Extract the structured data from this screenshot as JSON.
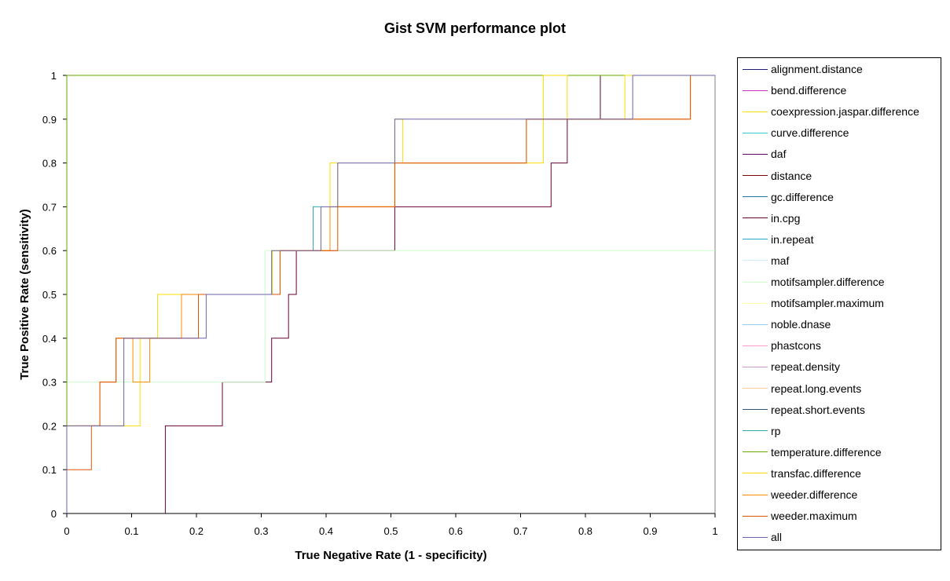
{
  "chart_data": {
    "type": "line",
    "title": "Gist SVM performance plot",
    "xlabel": "True Negative Rate (1 - specificity)",
    "ylabel": "True Positive Rate (sensitivity)",
    "xlim": [
      0,
      1
    ],
    "ylim": [
      0,
      1
    ],
    "x_ticks": [
      "0",
      "0.1",
      "0.2",
      "0.3",
      "0.4",
      "0.5",
      "0.6",
      "0.7",
      "0.8",
      "0.9",
      "1"
    ],
    "y_ticks": [
      "0",
      "0.1",
      "0.2",
      "0.3",
      "0.4",
      "0.5",
      "0.6",
      "0.7",
      "0.8",
      "0.9",
      "1"
    ],
    "grid": "none",
    "legend_position": "right",
    "series": [
      {
        "name": "alignment.distance",
        "color": "#1f1f7a",
        "x": [
          0,
          0,
          1
        ],
        "y": [
          0,
          1,
          1
        ]
      },
      {
        "name": "bend.difference",
        "color": "#cc33cc",
        "x": [
          0,
          0,
          1
        ],
        "y": [
          0,
          1,
          1
        ]
      },
      {
        "name": "coexpression.jaspar.difference",
        "color": "#f5e000",
        "x": [
          0,
          0,
          1
        ],
        "y": [
          0,
          1,
          1
        ]
      },
      {
        "name": "curve.difference",
        "color": "#33cccc",
        "x": [
          0,
          0,
          1
        ],
        "y": [
          0,
          1,
          1
        ]
      },
      {
        "name": "daf",
        "color": "#660066",
        "x": [
          0,
          0,
          1
        ],
        "y": [
          0,
          1,
          1
        ]
      },
      {
        "name": "distance",
        "color": "#7a0a0a",
        "x": [
          0,
          0,
          1
        ],
        "y": [
          0,
          1,
          1
        ]
      },
      {
        "name": "gc.difference",
        "color": "#1a7aaa",
        "x": [
          0,
          0,
          1
        ],
        "y": [
          0,
          1,
          1
        ]
      },
      {
        "name": "in.cpg",
        "color": "#660033",
        "x": [
          0.152,
          0.152,
          0.24,
          0.24,
          0.316,
          0.316,
          0.342,
          0.342,
          0.354,
          0.354,
          0.506,
          0.506,
          0.747,
          0.747,
          0.772,
          0.772,
          0.823,
          0.823,
          0.873,
          0.873,
          1
        ],
        "y": [
          0,
          0.2,
          0.2,
          0.3,
          0.3,
          0.4,
          0.4,
          0.5,
          0.5,
          0.6,
          0.6,
          0.7,
          0.7,
          0.8,
          0.8,
          0.9,
          0.9,
          1,
          1,
          1,
          1
        ]
      },
      {
        "name": "in.repeat",
        "color": "#22aacc",
        "x": [
          0,
          0,
          1
        ],
        "y": [
          0,
          1,
          1
        ]
      },
      {
        "name": "maf",
        "color": "#cceeff",
        "x": [
          0,
          0,
          1
        ],
        "y": [
          0,
          1,
          1
        ]
      },
      {
        "name": "motifsampler.difference",
        "color": "#ccffcc",
        "x": [
          0,
          0,
          0.306,
          0.306,
          1
        ],
        "y": [
          0,
          0.3,
          0.3,
          0.6,
          0.6
        ]
      },
      {
        "name": "motifsampler.maximum",
        "color": "#ffff99",
        "x": [
          0,
          0,
          1
        ],
        "y": [
          0,
          1,
          1
        ]
      },
      {
        "name": "noble.dnase",
        "color": "#99ccee",
        "x": [
          0,
          0,
          1
        ],
        "y": [
          0,
          1,
          1
        ]
      },
      {
        "name": "phastcons",
        "color": "#ff99cc",
        "x": [
          0,
          0,
          1
        ],
        "y": [
          0,
          1,
          1
        ]
      },
      {
        "name": "repeat.density",
        "color": "#cc99cc",
        "x": [
          0,
          0,
          1
        ],
        "y": [
          0,
          1,
          1
        ]
      },
      {
        "name": "repeat.long.events",
        "color": "#ffcc99",
        "x": [
          0,
          0,
          1
        ],
        "y": [
          0,
          1,
          1
        ]
      },
      {
        "name": "repeat.short.events",
        "color": "#335577",
        "x": [
          0,
          0,
          1
        ],
        "y": [
          0,
          1,
          1
        ]
      },
      {
        "name": "rp",
        "color": "#33aaaa",
        "x": [
          0.38,
          0.38,
          0.392,
          0.392
        ],
        "y": [
          0.6,
          0.7,
          0.7,
          0.7
        ]
      },
      {
        "name": "temperature.difference",
        "color": "#66aa00",
        "x": [
          0,
          0,
          1
        ],
        "y": [
          0,
          1,
          1
        ]
      },
      {
        "name": "transfac.difference",
        "color": "#ffdd00",
        "x": [
          0,
          0,
          0.102,
          0.102,
          0.113,
          0.113,
          0.14,
          0.14,
          0.177,
          0.177,
          0.317,
          0.317,
          0.342,
          0.342,
          0.406,
          0.406,
          0.418,
          0.418,
          0.481,
          0.481,
          0.506,
          0.506,
          0.518,
          0.518,
          0.714,
          0.714,
          0.735,
          0.735,
          0.772,
          0.772,
          0.861,
          0.861,
          1
        ],
        "y": [
          0,
          0.2,
          0.2,
          0.2,
          0.2,
          0.4,
          0.4,
          0.5,
          0.5,
          0.5,
          0.5,
          0.6,
          0.6,
          0.6,
          0.6,
          0.8,
          0.8,
          0.7,
          0.7,
          0.7,
          0.7,
          0.9,
          0.9,
          0.8,
          0.8,
          0.8,
          0.8,
          1,
          1,
          0.9,
          0.9,
          1,
          1
        ]
      },
      {
        "name": "weeder.difference",
        "color": "#ff8800",
        "x": [
          0,
          0,
          0.051,
          0.051,
          0.076,
          0.076,
          0.102,
          0.102,
          0.128,
          0.128,
          0.177,
          0.177,
          0.203,
          0.203,
          0.329,
          0.329,
          0.406,
          0.406,
          0.418,
          0.418,
          0.506,
          0.506,
          0.518,
          0.518,
          0.709,
          0.709,
          0.861,
          0.861,
          0.962,
          0.962,
          1
        ],
        "y": [
          0,
          0.2,
          0.2,
          0.3,
          0.3,
          0.4,
          0.4,
          0.3,
          0.3,
          0.4,
          0.4,
          0.5,
          0.5,
          0.5,
          0.5,
          0.6,
          0.6,
          0.7,
          0.7,
          0.7,
          0.7,
          0.8,
          0.8,
          0.8,
          0.8,
          0.9,
          0.9,
          0.9,
          0.9,
          1,
          1
        ]
      },
      {
        "name": "weeder.maximum",
        "color": "#dd5500",
        "x": [
          0,
          0,
          0.013,
          0.013,
          0.038,
          0.038,
          0.051,
          0.051,
          0.076,
          0.076,
          0.088,
          0.088,
          0.203,
          0.203,
          0.329,
          0.329,
          0.418,
          0.418,
          0.506,
          0.506,
          0.709,
          0.709,
          0.962,
          0.962,
          1
        ],
        "y": [
          0,
          0.1,
          0.1,
          0.1,
          0.1,
          0.2,
          0.2,
          0.3,
          0.3,
          0.4,
          0.4,
          0.4,
          0.4,
          0.5,
          0.5,
          0.6,
          0.6,
          0.7,
          0.7,
          0.8,
          0.8,
          0.9,
          0.9,
          1,
          1
        ]
      },
      {
        "name": "all",
        "color": "#6a62aa",
        "x": [
          0,
          0,
          0.088,
          0.088,
          0.215,
          0.215,
          0.316,
          0.316,
          0.392,
          0.392,
          0.418,
          0.418,
          0.506,
          0.506,
          0.873,
          0.873,
          1
        ],
        "y": [
          0,
          0.2,
          0.2,
          0.4,
          0.4,
          0.5,
          0.5,
          0.6,
          0.6,
          0.7,
          0.7,
          0.8,
          0.8,
          0.9,
          0.9,
          1,
          1
        ]
      }
    ]
  }
}
